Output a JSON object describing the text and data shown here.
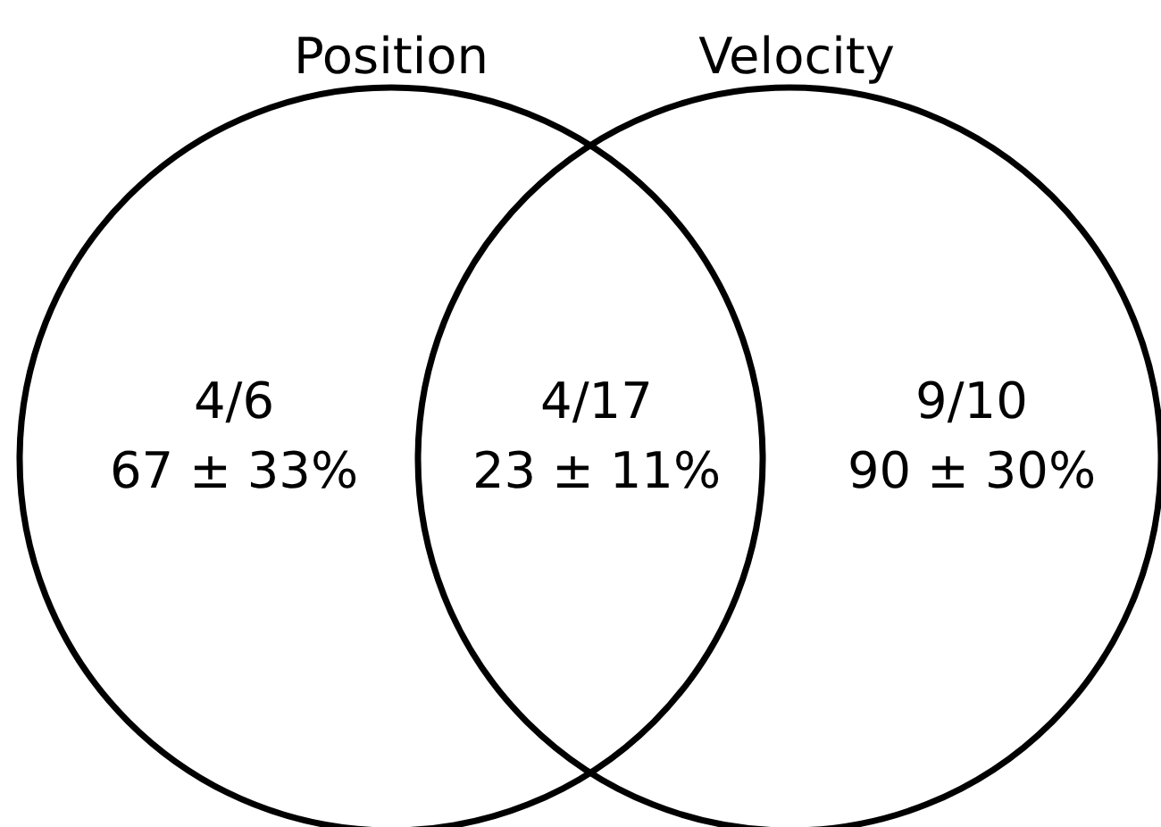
{
  "chart_data": {
    "type": "other",
    "categories": [
      "Position",
      null,
      "Velocity"
    ],
    "values": [
      67,
      23,
      90
    ],
    "value_labels": [
      "67 ± 33%",
      "23 ± 11%",
      "90 ± 30%"
    ],
    "annotations": [
      "4/6",
      "4/17",
      "9/10"
    ],
    "color": "#000000"
  }
}
